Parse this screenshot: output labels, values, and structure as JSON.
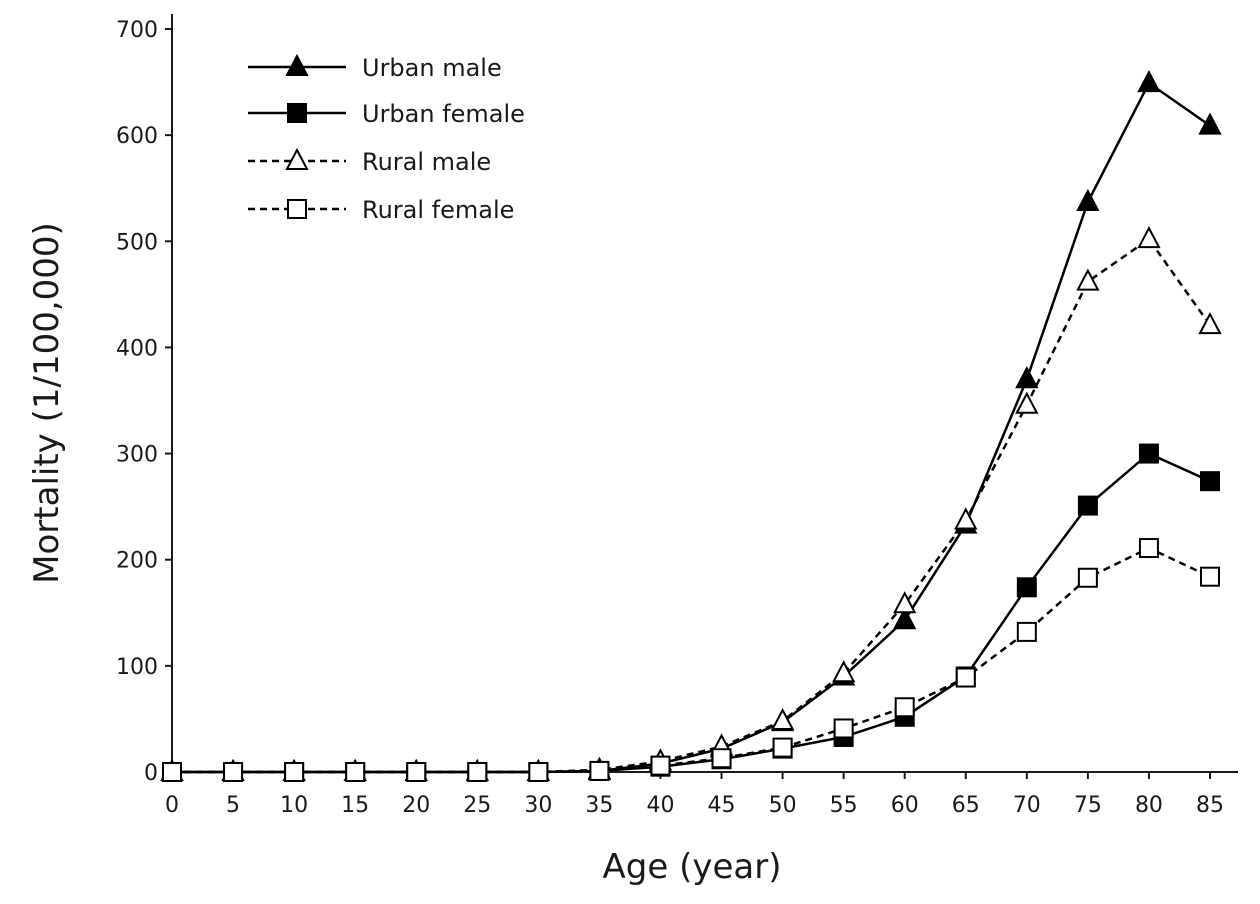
{
  "chart_data": {
    "type": "line",
    "title": "",
    "xlabel": "Age (year)",
    "ylabel": "Mortality (1/100,000)",
    "x": [
      0,
      5,
      10,
      15,
      20,
      25,
      30,
      35,
      40,
      45,
      50,
      55,
      60,
      65,
      70,
      75,
      80,
      85
    ],
    "x_ticks": [
      "0",
      "5",
      "10",
      "15",
      "20",
      "25",
      "30",
      "35",
      "40",
      "45",
      "50",
      "55",
      "60",
      "65",
      "70",
      "75",
      "80",
      "85"
    ],
    "y_ticks": [
      "0",
      "100",
      "200",
      "300",
      "400",
      "500",
      "600",
      "700"
    ],
    "ylim": [
      0,
      700
    ],
    "xlim": [
      0,
      85
    ],
    "grid": false,
    "legend_position": "top-left",
    "series": [
      {
        "name": "Urban male",
        "marker": "triangle-filled",
        "line": "solid",
        "values": [
          0,
          0,
          0,
          0,
          0,
          0,
          0,
          1,
          8,
          22,
          47,
          90,
          143,
          233,
          370,
          537,
          649,
          609
        ]
      },
      {
        "name": "Urban female",
        "marker": "square-filled",
        "line": "solid",
        "values": [
          0,
          0,
          0,
          0,
          0,
          0,
          0,
          1,
          5,
          12,
          22,
          33,
          52,
          90,
          174,
          251,
          300,
          274
        ]
      },
      {
        "name": "Rural male",
        "marker": "triangle-open",
        "line": "dashed",
        "values": [
          0,
          0,
          0,
          0,
          0,
          0,
          0,
          2,
          10,
          24,
          48,
          93,
          158,
          237,
          346,
          462,
          502,
          421
        ]
      },
      {
        "name": "Rural female",
        "marker": "square-open",
        "line": "dashed",
        "values": [
          0,
          0,
          0,
          0,
          0,
          0,
          0,
          1,
          6,
          13,
          23,
          41,
          61,
          89,
          132,
          183,
          211,
          184
        ]
      }
    ],
    "colors": {
      "line": "#000000",
      "axis": "#1a1a1a"
    }
  }
}
